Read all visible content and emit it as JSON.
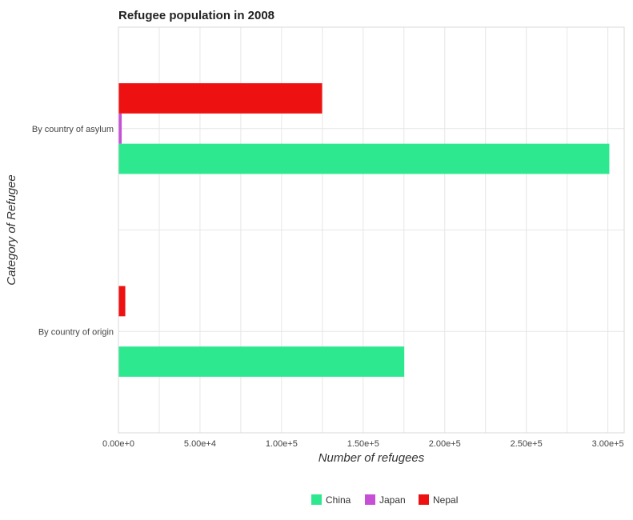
{
  "chart_data": {
    "type": "bar",
    "orientation": "horizontal",
    "title": "Refugee population in 2008",
    "xlabel": "Number of refugees",
    "ylabel": "Category of Refugee",
    "categories": [
      "By country of asylum",
      "By country of origin"
    ],
    "series": [
      {
        "name": "China",
        "color": "#2ee88f",
        "values": [
          300897,
          175180
        ]
      },
      {
        "name": "Japan",
        "color": "#c64fd6",
        "values": [
          2000,
          200
        ]
      },
      {
        "name": "Nepal",
        "color": "#ee1111",
        "values": [
          124832,
          4200
        ]
      }
    ],
    "xlim": [
      0,
      310000
    ],
    "xticks": [
      0,
      50000,
      100000,
      150000,
      200000,
      250000,
      300000
    ],
    "xtick_labels": [
      "0.00e+0",
      "5.00e+4",
      "1.00e+5",
      "1.50e+5",
      "2.00e+5",
      "2.50e+5",
      "3.00e+5"
    ],
    "grid": true,
    "legend_position": "bottom-center"
  }
}
